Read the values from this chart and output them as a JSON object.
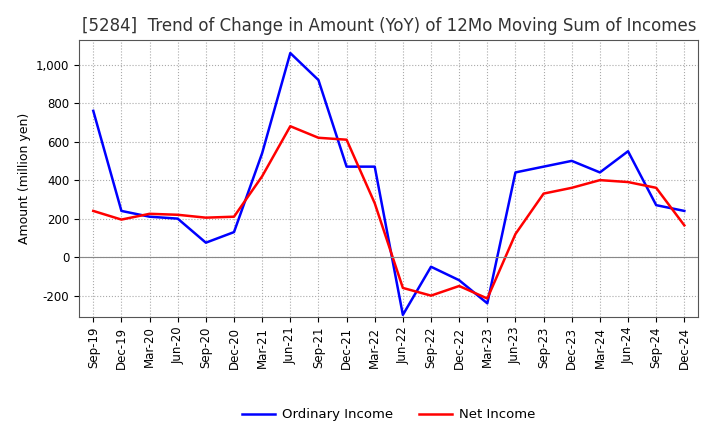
{
  "title": "[5284]  Trend of Change in Amount (YoY) of 12Mo Moving Sum of Incomes",
  "ylabel": "Amount (million yen)",
  "ylim": [
    -310,
    1130
  ],
  "yticks": [
    -200,
    0,
    200,
    400,
    600,
    800,
    1000
  ],
  "x_labels": [
    "Sep-19",
    "Dec-19",
    "Mar-20",
    "Jun-20",
    "Sep-20",
    "Dec-20",
    "Mar-21",
    "Jun-21",
    "Sep-21",
    "Dec-21",
    "Mar-22",
    "Jun-22",
    "Sep-22",
    "Dec-22",
    "Mar-23",
    "Jun-23",
    "Sep-23",
    "Dec-23",
    "Mar-24",
    "Jun-24",
    "Sep-24",
    "Dec-24"
  ],
  "ordinary_income": [
    760,
    240,
    210,
    200,
    75,
    130,
    540,
    1060,
    920,
    470,
    470,
    -300,
    -50,
    -120,
    -240,
    440,
    470,
    500,
    440,
    550,
    270,
    240
  ],
  "net_income": [
    240,
    195,
    225,
    220,
    205,
    210,
    420,
    680,
    620,
    610,
    280,
    -160,
    -200,
    -150,
    -215,
    120,
    330,
    360,
    400,
    390,
    360,
    165
  ],
  "ordinary_color": "#0000ff",
  "net_color": "#ff0000",
  "grid_color": "#aaaaaa",
  "zero_line_color": "#888888",
  "background_color": "#ffffff",
  "legend_ordinary": "Ordinary Income",
  "legend_net": "Net Income",
  "title_fontsize": 12,
  "axis_fontsize": 9,
  "tick_fontsize": 8.5
}
